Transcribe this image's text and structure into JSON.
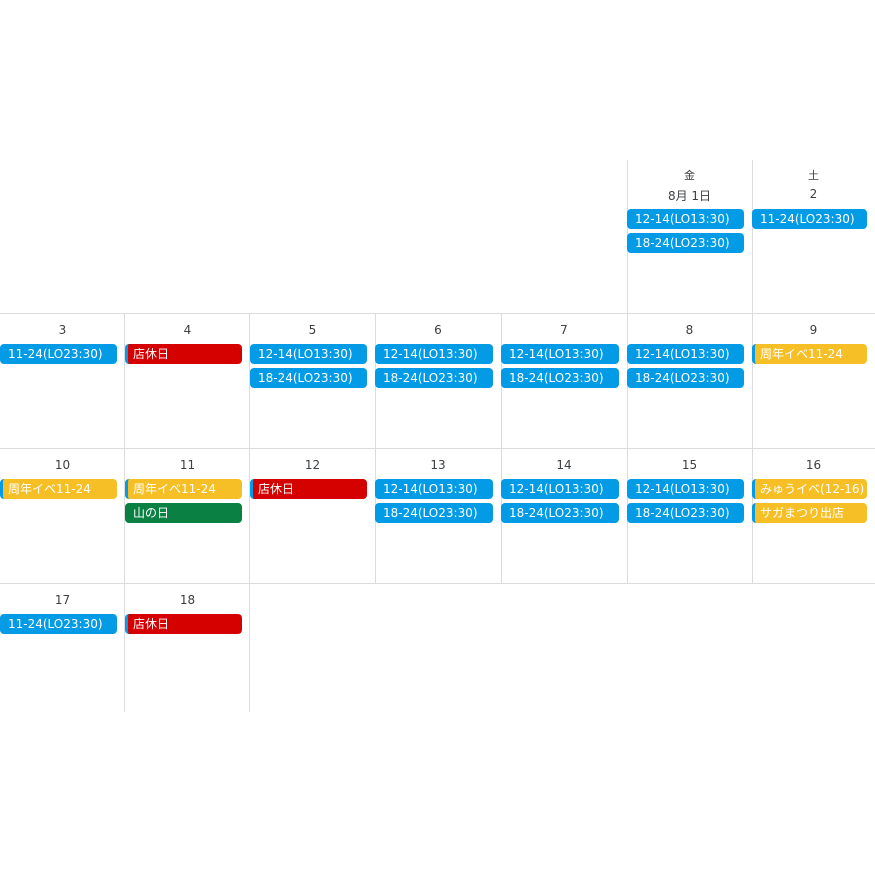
{
  "colors": {
    "blue": "#039be5",
    "red": "#d50000",
    "yellow": "#f6bf26",
    "green": "#0b8043",
    "grid": "#dadce0"
  },
  "headers": {
    "fri": {
      "weekday": "金",
      "day": "8月 1日"
    },
    "sat": {
      "weekday": "土",
      "day": "2"
    }
  },
  "days": [
    {
      "day": "8月 1日"
    },
    {
      "day": "2"
    },
    {
      "day": "3"
    },
    {
      "day": "4"
    },
    {
      "day": "5"
    },
    {
      "day": "6"
    },
    {
      "day": "7"
    },
    {
      "day": "8"
    },
    {
      "day": "9"
    },
    {
      "day": "10"
    },
    {
      "day": "11"
    },
    {
      "day": "12"
    },
    {
      "day": "13"
    },
    {
      "day": "14"
    },
    {
      "day": "15"
    },
    {
      "day": "16"
    },
    {
      "day": "17"
    },
    {
      "day": "18"
    }
  ],
  "events": [
    {
      "day": "8月 1日",
      "title": "12-14(LO13:30)",
      "color": "blue"
    },
    {
      "day": "8月 1日",
      "title": "18-24(LO23:30)",
      "color": "blue"
    },
    {
      "day": "2",
      "title": "11-24(LO23:30)",
      "color": "blue"
    },
    {
      "day": "3",
      "title": "11-24(LO23:30)",
      "color": "blue"
    },
    {
      "day": "4",
      "title": "店休日",
      "color": "red",
      "stripe": "blue"
    },
    {
      "day": "5",
      "title": "12-14(LO13:30)",
      "color": "blue"
    },
    {
      "day": "5",
      "title": "18-24(LO23:30)",
      "color": "blue"
    },
    {
      "day": "6",
      "title": "12-14(LO13:30)",
      "color": "blue"
    },
    {
      "day": "6",
      "title": "18-24(LO23:30)",
      "color": "blue"
    },
    {
      "day": "7",
      "title": "12-14(LO13:30)",
      "color": "blue"
    },
    {
      "day": "7",
      "title": "18-24(LO23:30)",
      "color": "blue"
    },
    {
      "day": "8",
      "title": "12-14(LO13:30)",
      "color": "blue"
    },
    {
      "day": "8",
      "title": "18-24(LO23:30)",
      "color": "blue"
    },
    {
      "day": "9",
      "title": "周年イベ11-24",
      "color": "yellow",
      "stripe": "blue"
    },
    {
      "day": "10",
      "title": "周年イベ11-24",
      "color": "yellow",
      "stripe": "blue"
    },
    {
      "day": "11",
      "title": "周年イベ11-24",
      "color": "yellow",
      "stripe": "blue"
    },
    {
      "day": "11",
      "title": "山の日",
      "color": "green"
    },
    {
      "day": "12",
      "title": "店休日",
      "color": "red",
      "stripe": "blue"
    },
    {
      "day": "13",
      "title": "12-14(LO13:30)",
      "color": "blue"
    },
    {
      "day": "13",
      "title": "18-24(LO23:30)",
      "color": "blue"
    },
    {
      "day": "14",
      "title": "12-14(LO13:30)",
      "color": "blue"
    },
    {
      "day": "14",
      "title": "18-24(LO23:30)",
      "color": "blue"
    },
    {
      "day": "15",
      "title": "12-14(LO13:30)",
      "color": "blue"
    },
    {
      "day": "15",
      "title": "18-24(LO23:30)",
      "color": "blue"
    },
    {
      "day": "16",
      "title": "みゅうイベ(12-16)",
      "color": "yellow",
      "stripe": "blue"
    },
    {
      "day": "16",
      "title": "サガまつり出店",
      "color": "yellow",
      "stripe": "blue"
    },
    {
      "day": "17",
      "title": "11-24(LO23:30)",
      "color": "blue"
    },
    {
      "day": "18",
      "title": "店休日",
      "color": "red",
      "stripe": "blue"
    }
  ]
}
